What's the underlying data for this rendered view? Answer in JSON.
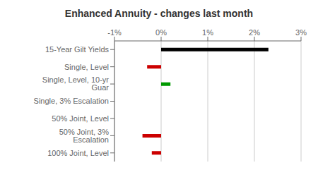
{
  "chart_data": {
    "type": "bar",
    "title": "Enhanced Annuity - changes last month",
    "orientation": "horizontal",
    "categories": [
      "15-Year Gilt Yields",
      "Single, Level",
      "Single, Level, 10-yr Guar",
      "Single, 3% Escalation",
      "50% Joint, Level",
      "50% Joint, 3% Escalation",
      "100% Joint, Level"
    ],
    "values": [
      0.023,
      -0.003,
      0.002,
      0.0,
      0.0,
      -0.004,
      -0.002
    ],
    "colors": [
      "#000000",
      "#cc0000",
      "#009900",
      "#cc0000",
      "#cc0000",
      "#cc0000",
      "#cc0000"
    ],
    "xlim": [
      -0.01,
      0.03
    ],
    "xticks": [
      {
        "value": -0.01,
        "label": "-1%"
      },
      {
        "value": 0.0,
        "label": "0%"
      },
      {
        "value": 0.01,
        "label": "1%"
      },
      {
        "value": 0.02,
        "label": "2%"
      },
      {
        "value": 0.03,
        "label": "3%"
      }
    ],
    "grid": true
  }
}
